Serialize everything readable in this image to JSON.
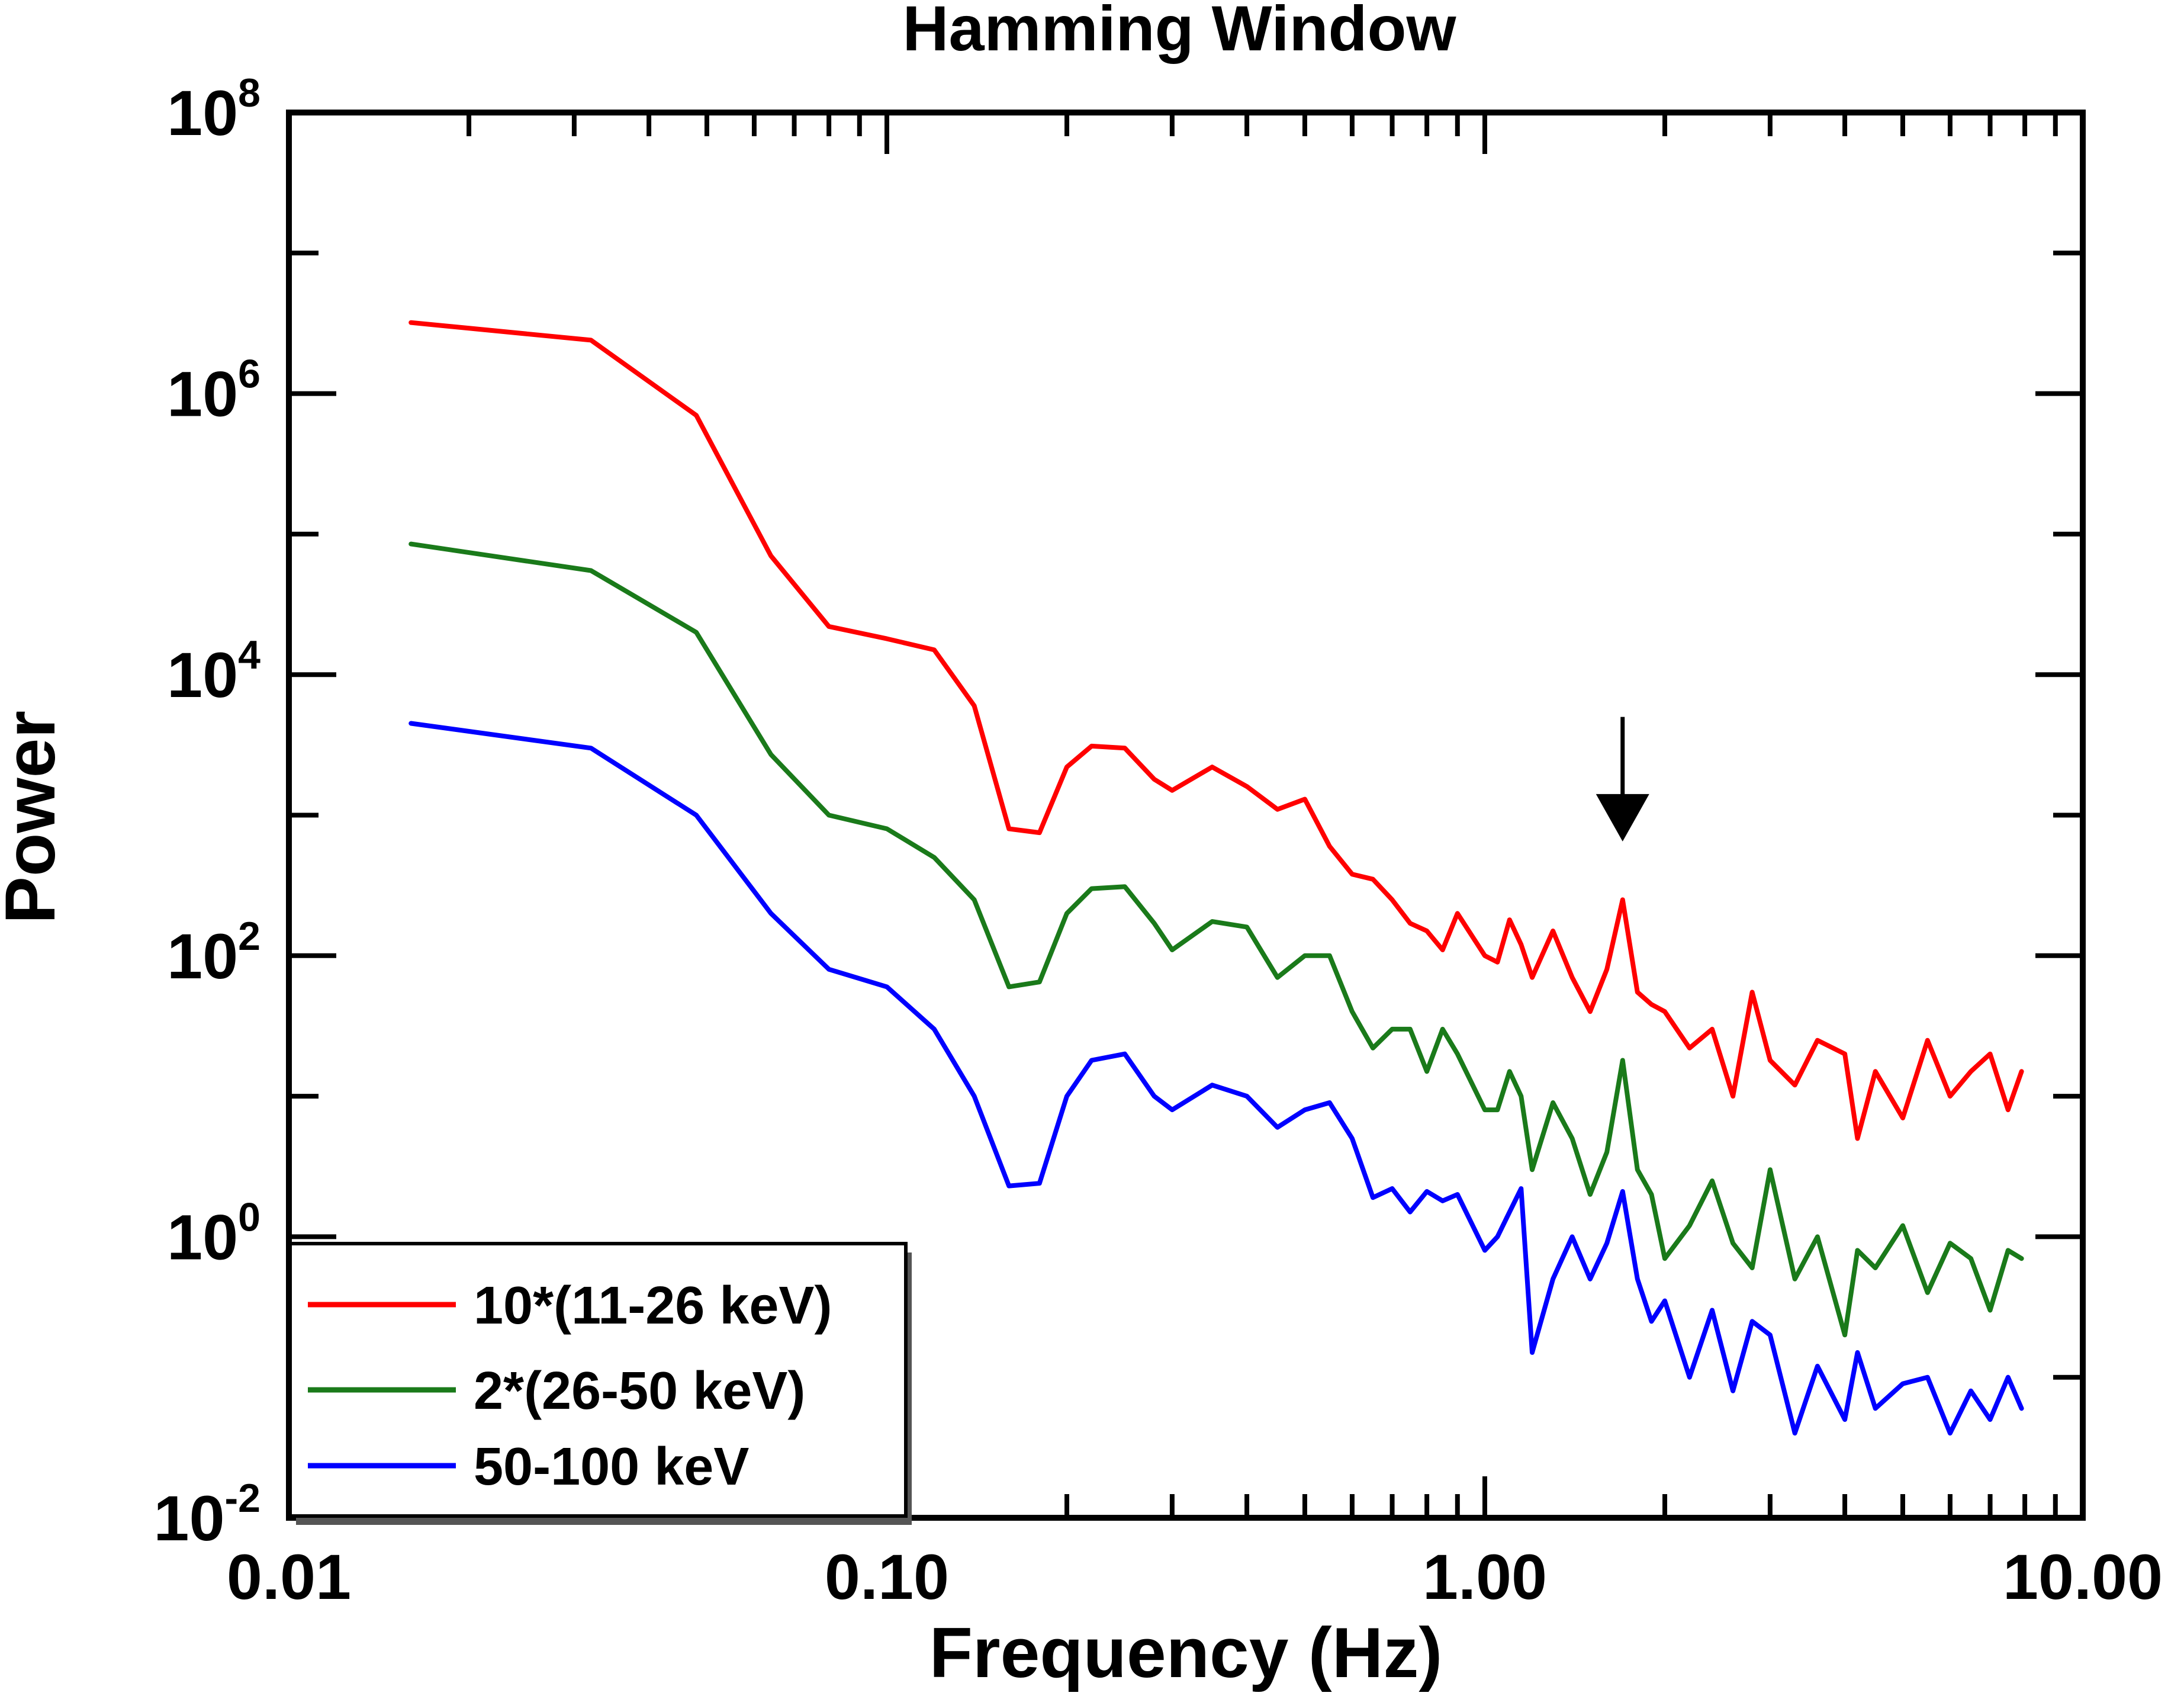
{
  "chart_data": {
    "type": "line",
    "title": "Hamming Window",
    "xlabel": "Frequency (Hz)",
    "ylabel": "Power",
    "xscale": "log",
    "yscale": "log",
    "xlim": [
      0.01,
      10.0
    ],
    "ylim": [
      0.01,
      100000000
    ],
    "x_tick_labels": [
      "0.01",
      "0.10",
      "1.00",
      "10.00"
    ],
    "y_tick_labels": [
      {
        "base": "10",
        "exp": "-2"
      },
      {
        "base": "10",
        "exp": "0"
      },
      {
        "base": "10",
        "exp": "2"
      },
      {
        "base": "10",
        "exp": "4"
      },
      {
        "base": "10",
        "exp": "6"
      },
      {
        "base": "10",
        "exp": "8"
      }
    ],
    "grid": false,
    "legend_position": "bottom-left",
    "annotation": {
      "type": "arrow",
      "direction": "down",
      "x": 1.7,
      "y_from": 5000,
      "y_to": 650
    },
    "series": [
      {
        "name": "10*(11-26 keV)",
        "color": "#ff0000",
        "x": [
          0.016,
          0.032,
          0.048,
          0.064,
          0.08,
          0.1,
          0.12,
          0.14,
          0.16,
          0.18,
          0.2,
          0.22,
          0.25,
          0.28,
          0.3,
          0.35,
          0.4,
          0.45,
          0.5,
          0.55,
          0.6,
          0.65,
          0.7,
          0.75,
          0.8,
          0.85,
          0.9,
          1.0,
          1.05,
          1.1,
          1.15,
          1.2,
          1.3,
          1.4,
          1.5,
          1.6,
          1.7,
          1.8,
          1.9,
          2.0,
          2.2,
          2.4,
          2.6,
          2.8,
          3.0,
          3.3,
          3.6,
          4.0,
          4.2,
          4.5,
          5.0,
          5.5,
          6.0,
          6.5,
          7.0,
          7.5,
          7.9
        ],
        "y": [
          3200000,
          2400000,
          700000,
          70000,
          22000,
          18000,
          15000,
          6000,
          800,
          750,
          2200,
          3100,
          3000,
          1800,
          1500,
          2200,
          1600,
          1100,
          1300,
          600,
          380,
          350,
          250,
          170,
          150,
          110,
          200,
          100,
          90,
          180,
          120,
          70,
          150,
          70,
          40,
          80,
          250,
          55,
          45,
          40,
          22,
          30,
          10,
          55,
          18,
          12,
          25,
          20,
          5,
          15,
          7,
          25,
          10,
          15,
          20,
          8,
          15
        ]
      },
      {
        "name": "2*(26-50 keV)",
        "color": "#1a7a1a",
        "x": [
          0.016,
          0.032,
          0.048,
          0.064,
          0.08,
          0.1,
          0.12,
          0.14,
          0.16,
          0.18,
          0.2,
          0.22,
          0.25,
          0.28,
          0.3,
          0.35,
          0.4,
          0.45,
          0.5,
          0.55,
          0.6,
          0.65,
          0.7,
          0.75,
          0.8,
          0.85,
          0.9,
          1.0,
          1.05,
          1.1,
          1.15,
          1.2,
          1.3,
          1.4,
          1.5,
          1.6,
          1.7,
          1.8,
          1.9,
          2.0,
          2.2,
          2.4,
          2.6,
          2.8,
          3.0,
          3.3,
          3.6,
          4.0,
          4.2,
          4.5,
          5.0,
          5.5,
          6.0,
          6.5,
          7.0,
          7.5,
          7.9
        ],
        "y": [
          85000,
          55000,
          20000,
          2700,
          1000,
          800,
          500,
          250,
          60,
          65,
          200,
          300,
          310,
          170,
          110,
          175,
          160,
          70,
          100,
          100,
          40,
          22,
          30,
          30,
          15,
          30,
          20,
          8,
          8,
          15,
          10,
          3,
          9,
          5,
          2,
          4,
          18,
          3,
          2,
          0.7,
          1.2,
          2.5,
          0.9,
          0.6,
          3.0,
          0.5,
          1.0,
          0.2,
          0.8,
          0.6,
          1.2,
          0.4,
          0.9,
          0.7,
          0.3,
          0.8,
          0.7
        ]
      },
      {
        "name": "50-100 keV",
        "color": "#0000ff",
        "x": [
          0.016,
          0.032,
          0.048,
          0.064,
          0.08,
          0.1,
          0.12,
          0.14,
          0.16,
          0.18,
          0.2,
          0.22,
          0.25,
          0.28,
          0.3,
          0.35,
          0.4,
          0.45,
          0.5,
          0.55,
          0.6,
          0.65,
          0.7,
          0.75,
          0.8,
          0.85,
          0.9,
          1.0,
          1.05,
          1.1,
          1.15,
          1.2,
          1.3,
          1.4,
          1.5,
          1.6,
          1.7,
          1.8,
          1.9,
          2.0,
          2.2,
          2.4,
          2.6,
          2.8,
          3.0,
          3.3,
          3.6,
          4.0,
          4.2,
          4.5,
          5.0,
          5.5,
          6.0,
          6.5,
          7.0,
          7.5,
          7.9
        ],
        "y": [
          4500,
          3000,
          1000,
          200,
          80,
          60,
          30,
          10,
          2.3,
          2.4,
          10,
          18,
          20,
          10,
          8,
          12,
          10,
          6,
          8,
          9,
          5,
          1.9,
          2.2,
          1.5,
          2.1,
          1.8,
          2.0,
          0.8,
          1.0,
          1.5,
          2.2,
          0.15,
          0.5,
          1.0,
          0.5,
          0.9,
          2.1,
          0.5,
          0.25,
          0.35,
          0.1,
          0.3,
          0.08,
          0.25,
          0.2,
          0.04,
          0.12,
          0.05,
          0.15,
          0.06,
          0.09,
          0.1,
          0.04,
          0.08,
          0.05,
          0.1,
          0.06
        ]
      }
    ]
  }
}
